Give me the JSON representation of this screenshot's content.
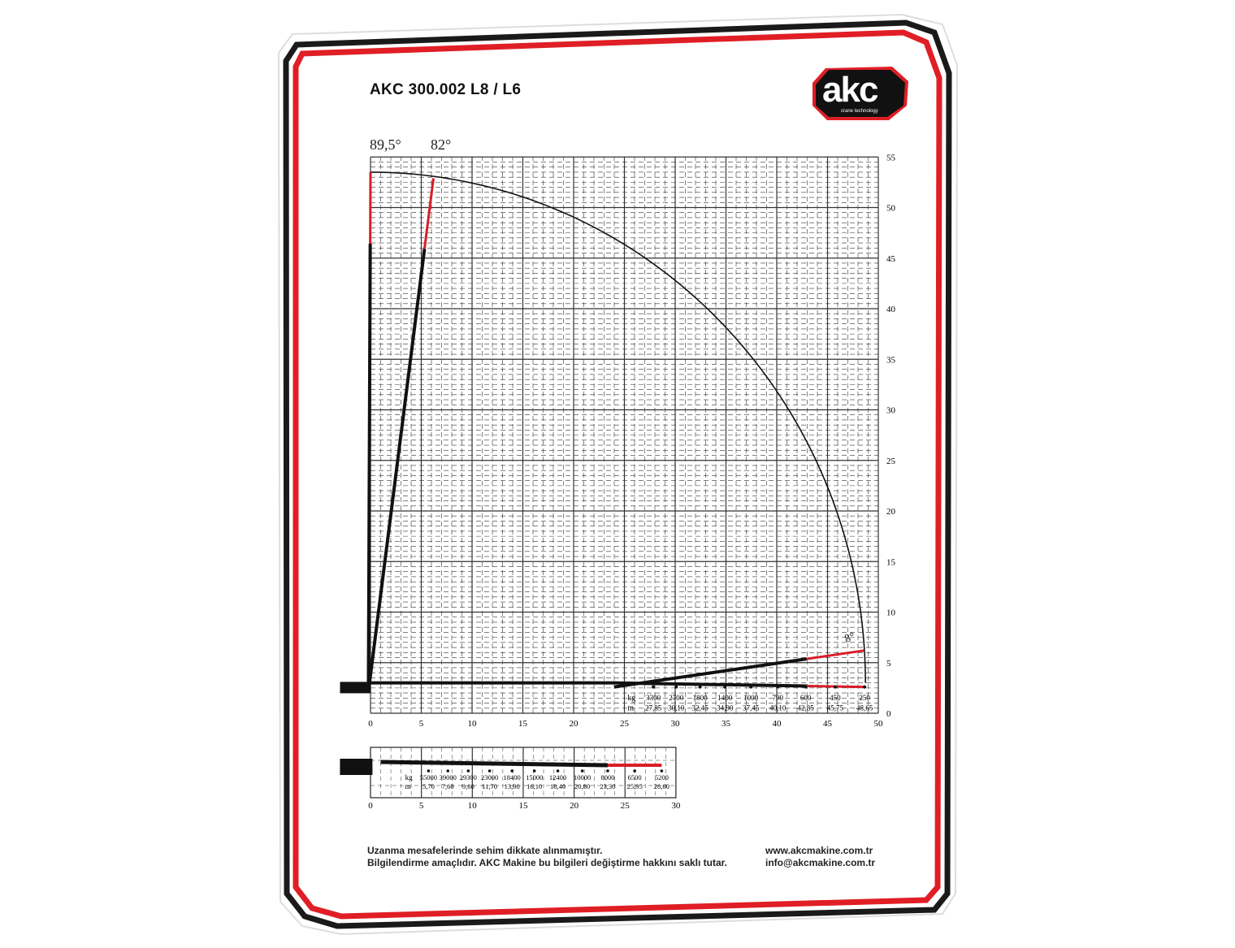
{
  "title": "AKC 300.002 L8 / L6",
  "logo": {
    "text": "akc",
    "subtitle": "crane technology"
  },
  "colors": {
    "frame_black": "#1a1a1a",
    "frame_red": "#e01e25",
    "boom": "#111111",
    "boom_tip": "#d81e28",
    "grid": "#333333"
  },
  "angles": {
    "vertical": "89,5°",
    "steep": "82°",
    "low": "8°"
  },
  "chart_data": [
    {
      "type": "table",
      "name": "",
      "x_ticks": [
        0,
        5,
        10,
        15,
        20,
        25,
        30,
        35,
        40,
        45,
        50
      ],
      "y_ticks": [
        0,
        5,
        10,
        15,
        20,
        25,
        30,
        35,
        40,
        45,
        50,
        55
      ],
      "xlim": [
        0,
        50
      ],
      "ylim": [
        0,
        55
      ],
      "grid": true,
      "row_labels": {
        "kg": "kg",
        "m": "m"
      },
      "kg": [
        "3300",
        "2700",
        "1800",
        "1400",
        "1000",
        "790",
        "600",
        "450",
        "250"
      ],
      "m": [
        "27,85",
        "30,10",
        "32,45",
        "34,90",
        "37,45",
        "40,10",
        "42,85",
        "45,75",
        "48,65"
      ]
    },
    {
      "type": "table",
      "name": "",
      "x_ticks": [
        0,
        5,
        10,
        15,
        20,
        25,
        30
      ],
      "xlim": [
        0,
        30
      ],
      "grid": true,
      "row_labels": {
        "kg": "kg",
        "m": "m"
      },
      "kg": [
        "55000",
        "39000",
        "29300",
        "23000",
        "18400",
        "15000",
        "12400",
        "10000",
        "8000",
        "6500",
        "5200"
      ],
      "m": [
        "5,70",
        "7,60",
        "9,60",
        "11,70",
        "13,90",
        "16,10",
        "18,40",
        "20,80",
        "23,30",
        "25,95",
        "28,60"
      ]
    }
  ],
  "footer": {
    "line1": "Uzanma mesafelerinde sehim dikkate alınmamıştır.",
    "line2": "Bilgilendirme amaçlıdır. AKC Makine bu bilgileri değiştirme hakkını saklı tutar.",
    "web": "www.akcmakine.com.tr",
    "email": "info@akcmakine.com.tr"
  }
}
